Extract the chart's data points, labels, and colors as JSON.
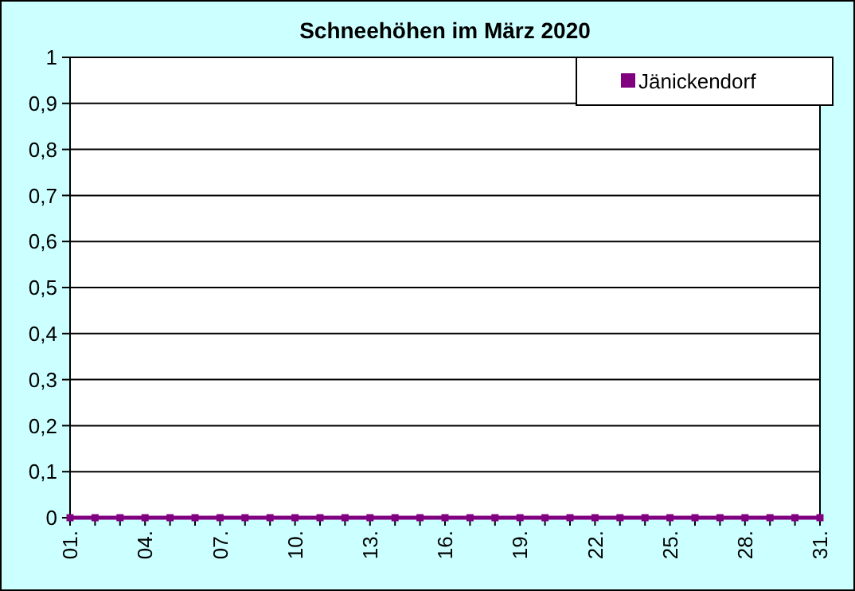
{
  "chart_data": {
    "type": "line",
    "title": "Schneehöhen im März 2020",
    "categories": [
      "01.",
      null,
      null,
      "04.",
      null,
      null,
      "07.",
      null,
      null,
      "10.",
      null,
      null,
      "13.",
      null,
      null,
      "16.",
      null,
      null,
      "19.",
      null,
      null,
      "22.",
      null,
      null,
      "25.",
      null,
      null,
      "28.",
      null,
      null,
      "31."
    ],
    "series": [
      {
        "name": "Jänickendorf",
        "color": "#800080",
        "values": [
          0,
          0,
          0,
          0,
          0,
          0,
          0,
          0,
          0,
          0,
          0,
          0,
          0,
          0,
          0,
          0,
          0,
          0,
          0,
          0,
          0,
          0,
          0,
          0,
          0,
          0,
          0,
          0,
          0,
          0,
          0
        ]
      }
    ],
    "ylim": [
      0,
      1
    ],
    "yticks": [
      0,
      {
        "value": 0.1,
        "label": "0,1"
      },
      {
        "value": 0.2,
        "label": "0,2"
      },
      {
        "value": 0.3,
        "label": "0,3"
      },
      {
        "value": 0.4,
        "label": "0,4"
      },
      {
        "value": 0.5,
        "label": "0,5"
      },
      {
        "value": 0.6,
        "label": "0,6"
      },
      {
        "value": 0.7,
        "label": "0,7"
      },
      {
        "value": 0.8,
        "label": "0,8"
      },
      {
        "value": 0.9,
        "label": "0,9"
      },
      1
    ],
    "grid": "y",
    "legend": "top right",
    "marker": "square",
    "line_style": "solid"
  }
}
